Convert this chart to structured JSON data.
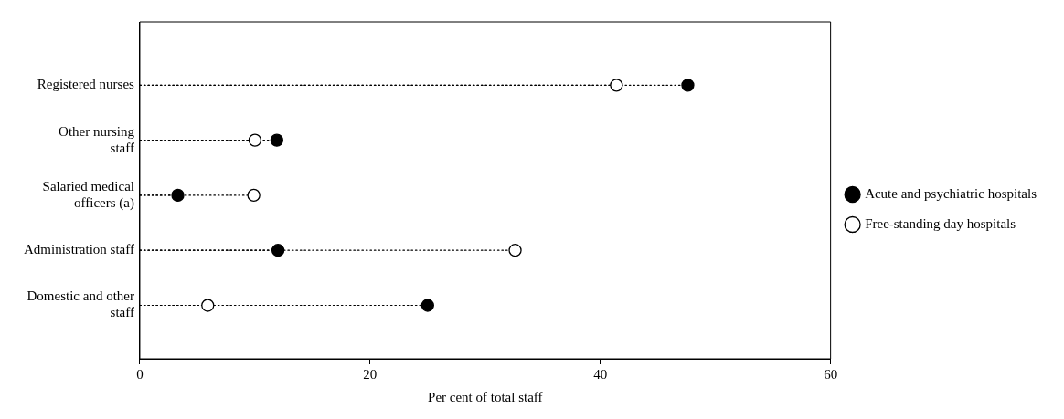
{
  "chart_data": {
    "type": "lollipop",
    "orientation": "horizontal",
    "xlabel": "Per cent of total staff",
    "categories": [
      "Registered nurses",
      "Other nursing\nstaff",
      "Salaried medical\nofficers (a)",
      "Administration staff",
      "Domestic and other\nstaff"
    ],
    "series": [
      {
        "name": "Acute and psychiatric hospitals",
        "color": "#000000",
        "values": [
          47.6,
          11.9,
          3.3,
          12.0,
          25.0
        ]
      },
      {
        "name": "Free-standing day hospitals",
        "color": "#ffffff",
        "values": [
          41.4,
          10.0,
          9.9,
          32.6,
          5.9
        ]
      }
    ],
    "xlim": [
      0,
      60
    ],
    "xticks": [
      0,
      20,
      40,
      60
    ],
    "grid": false,
    "legend": "right",
    "marker": "circle",
    "line_style": "dotted"
  }
}
